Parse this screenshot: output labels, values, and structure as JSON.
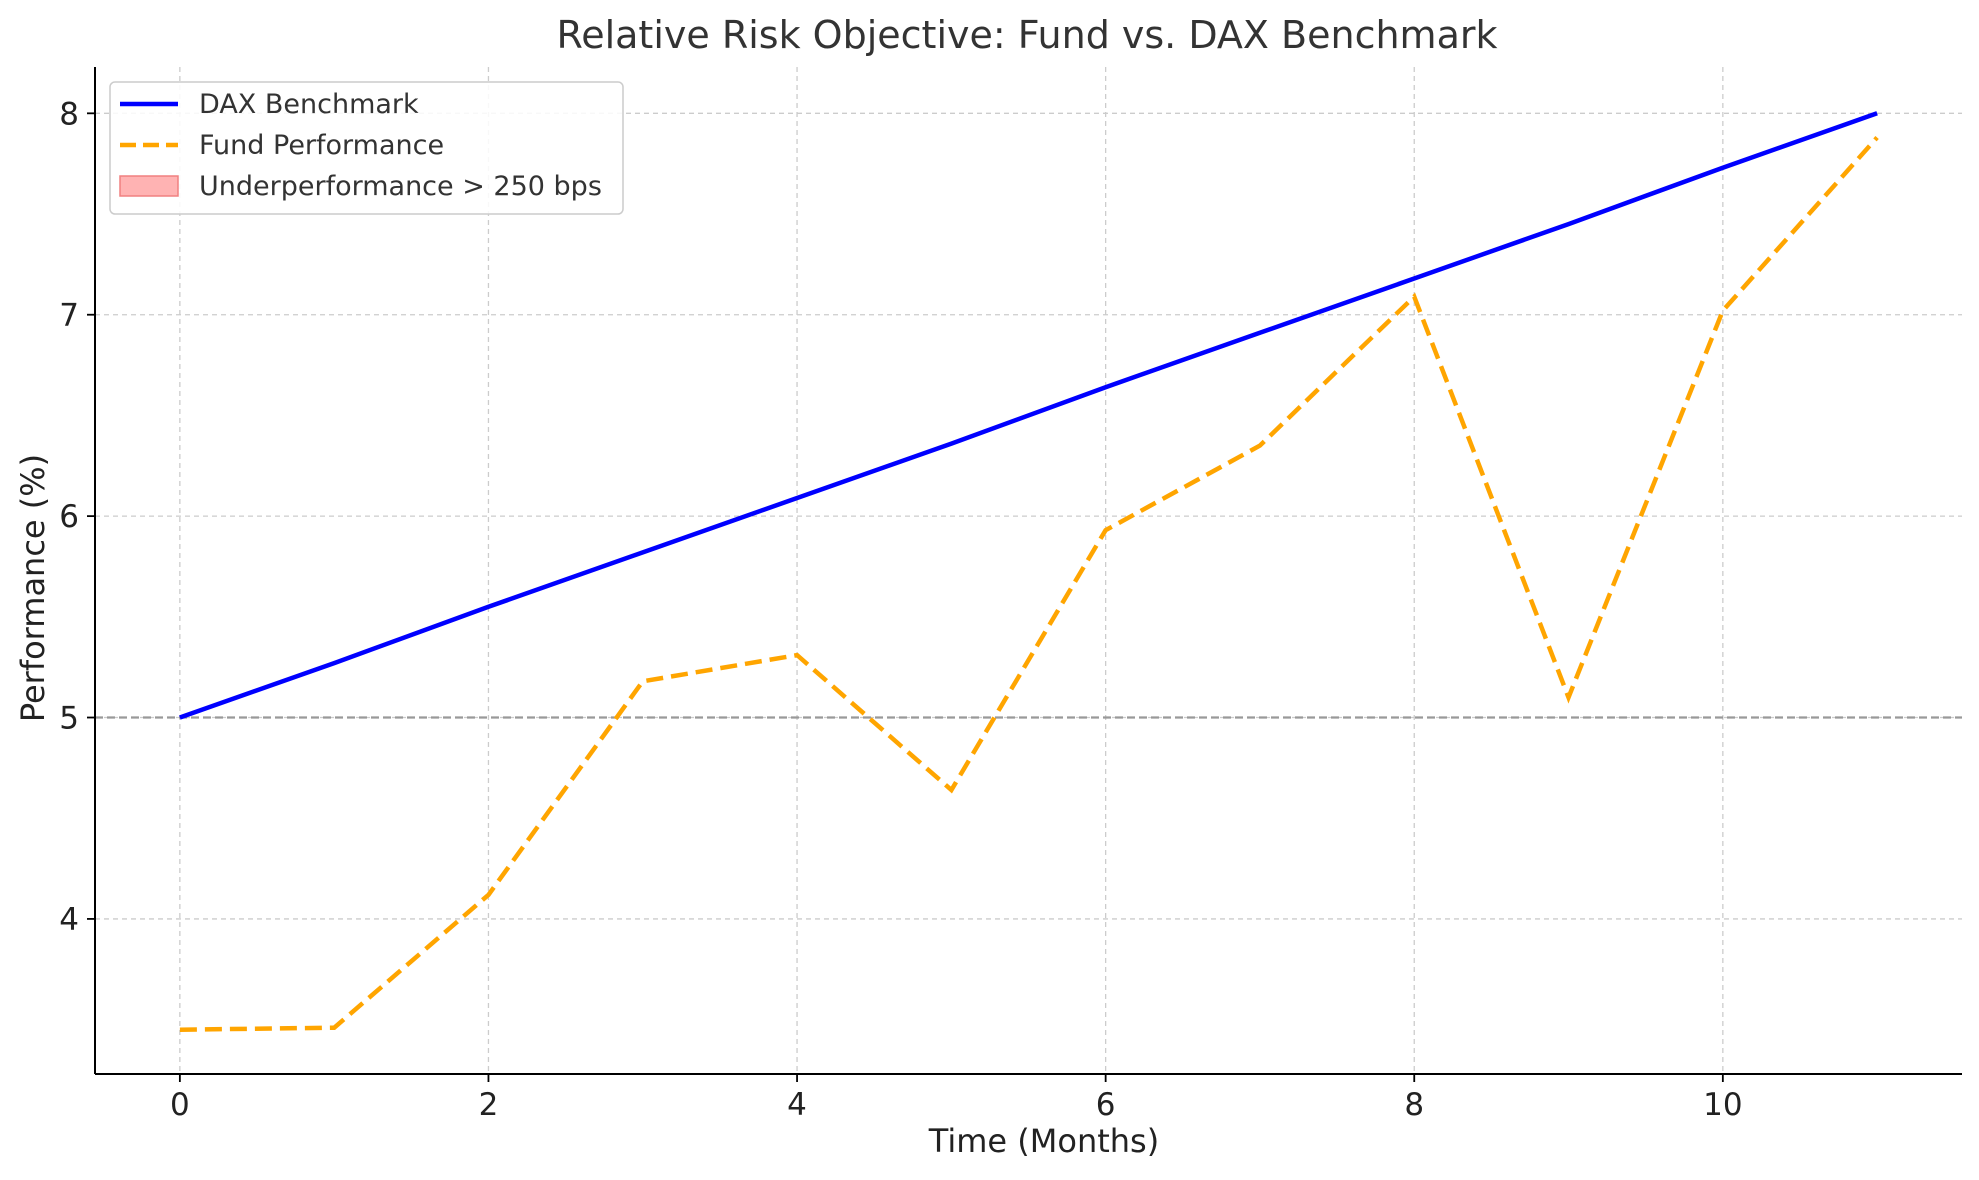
{
  "chart_data": {
    "type": "line",
    "title": "Relative Risk Objective: Fund vs. DAX Benchmark",
    "xlabel": "Time (Months)",
    "ylabel": "Performance (%)",
    "x": [
      0,
      1,
      2,
      3,
      4,
      5,
      6,
      7,
      8,
      9,
      10,
      11
    ],
    "xlim": [
      -0.55,
      11.55
    ],
    "ylim": [
      3.23,
      8.23
    ],
    "xticks": [
      0,
      2,
      4,
      6,
      8,
      10
    ],
    "yticks": [
      4,
      5,
      6,
      7,
      8
    ],
    "grid": true,
    "legend_position": "top-left",
    "series": [
      {
        "name": "DAX Benchmark",
        "style": "solid",
        "color": "#0000ff",
        "values": [
          5.0,
          5.27,
          5.55,
          5.82,
          6.09,
          6.36,
          6.64,
          6.91,
          7.18,
          7.45,
          7.73,
          8.0
        ]
      },
      {
        "name": "Fund Performance",
        "style": "dashed",
        "color": "#ffa500",
        "values": [
          3.45,
          3.46,
          4.12,
          5.18,
          5.31,
          4.64,
          5.93,
          6.35,
          7.09,
          5.1,
          7.02,
          7.88
        ]
      }
    ],
    "legend_extra": {
      "name": "Underperformance > 250 bps",
      "fill_color": "#ffb3b3",
      "edge_color": "#f08080"
    },
    "reference_line": {
      "y": 5,
      "color": "#999999",
      "style": "dashed"
    }
  }
}
